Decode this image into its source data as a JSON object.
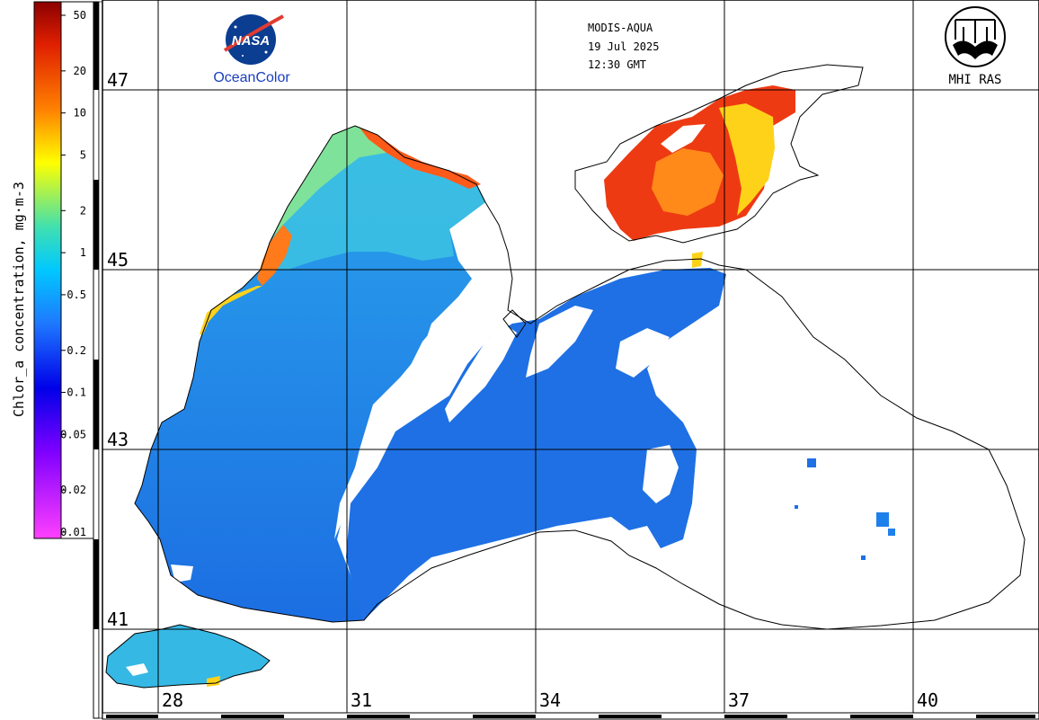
{
  "header": {
    "satellite": "MODIS-AQUA",
    "date": "19 Jul 2025",
    "time": "12:30 GMT"
  },
  "logos": {
    "nasa_text": "NASA",
    "oceancolor_text": "OceanColor",
    "mhi_text": "MHI RAS"
  },
  "colorbar": {
    "title": "Chlor_a concentration, mg·m-3",
    "scale": "log",
    "ticks": [
      "50",
      "20",
      "10",
      "5",
      "2",
      "1",
      "0.5",
      "0.2",
      "0.1",
      "0.05",
      "0.02",
      "0.01"
    ],
    "colors": [
      "#9b0000",
      "#d81e00",
      "#ff6a00",
      "#ffa500",
      "#ffe000",
      "#b7f030",
      "#40e0d0",
      "#00b2ff",
      "#1e6fe6",
      "#0000ff",
      "#6a00ff",
      "#c000ff",
      "#ff40ff"
    ]
  },
  "axes": {
    "latitudes": [
      "47",
      "45",
      "43",
      "41"
    ],
    "longitudes": [
      "28",
      "31",
      "34",
      "37",
      "40"
    ]
  },
  "map_colors": {
    "open_sea": "#1f78e6",
    "shelf": "#35b8e8",
    "coastal": "#8fe0a8",
    "bloom": "#ff3a1a",
    "bloom_edge": "#ffd21a",
    "coastline": "#000000"
  }
}
